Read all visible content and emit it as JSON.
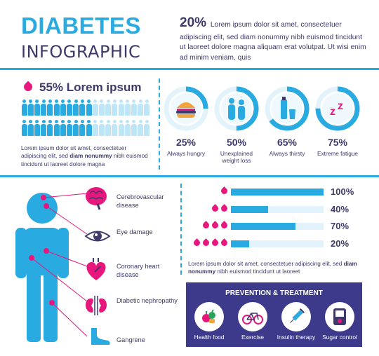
{
  "header": {
    "title_line1": "DIABETES",
    "title_line2": "INFOGRAPHIC",
    "intro_pct": "20%",
    "intro_text": "Lorem ipsum dolor sit amet, consectetuer adipiscing elit, sed diam nonummy nibh euismod tincidunt ut laoreet dolore magna aliquam erat volutpat. Ut wisi enim ad minim veniam, quis"
  },
  "stat": {
    "heading": "55% Lorem ipsum",
    "people_total": 40,
    "people_highlighted": 22,
    "para_before": "Lorem ipsum dolor sit amet, consectetuer adipiscing elit, sed ",
    "para_bold": "diam nonummy",
    "para_after": " nibh euismod tincidunt ut laoreet dolore magna"
  },
  "symptoms": [
    {
      "pct": "25%",
      "value": 25,
      "label": "Always hungry",
      "icon": "burger-icon"
    },
    {
      "pct": "50%",
      "value": 50,
      "label": "Unexplained weight loss",
      "icon": "couple-icon"
    },
    {
      "pct": "65%",
      "value": 65,
      "label": "Always thirsty",
      "icon": "bottle-glass-icon"
    },
    {
      "pct": "75%",
      "value": 75,
      "label": "Extreme fatigue",
      "icon": "sleep-zz-icon"
    }
  ],
  "complications": [
    {
      "label": "Cerebrovascular disease",
      "icon": "brain-icon"
    },
    {
      "label": "Eye damage",
      "icon": "eye-icon"
    },
    {
      "label": "Coronary heart disease",
      "icon": "heart-icon"
    },
    {
      "label": "Diabetic nephropathy",
      "icon": "kidneys-icon"
    },
    {
      "label": "Gangrene",
      "icon": "foot-icon"
    }
  ],
  "bars": [
    {
      "drops": 1,
      "pct": "100%",
      "value": 100
    },
    {
      "drops": 2,
      "pct": "40%",
      "value": 40
    },
    {
      "drops": 3,
      "pct": "70%",
      "value": 70
    },
    {
      "drops": 4,
      "pct": "20%",
      "value": 20
    }
  ],
  "bars_text": {
    "before": "Lorem ipsum dolor sit amet, consectetuer adipiscing elit, sed ",
    "bold": "diam nonummy",
    "after": " nibh euismod tincidunt ut laoreet"
  },
  "prevention": {
    "title": "PREVENTION & TREATMENT",
    "items": [
      {
        "label": "Health food",
        "icon": "food-icon"
      },
      {
        "label": "Exercise",
        "icon": "bicycle-icon"
      },
      {
        "label": "Insulin therapy",
        "icon": "syringe-icon"
      },
      {
        "label": "Sugar control",
        "icon": "glucose-meter-icon"
      }
    ]
  },
  "colors": {
    "blue": "#29abe2",
    "light_blue": "#e3f3fb",
    "navy": "#3d3a6b",
    "purple": "#3d3a8c",
    "pink": "#e8177d"
  }
}
